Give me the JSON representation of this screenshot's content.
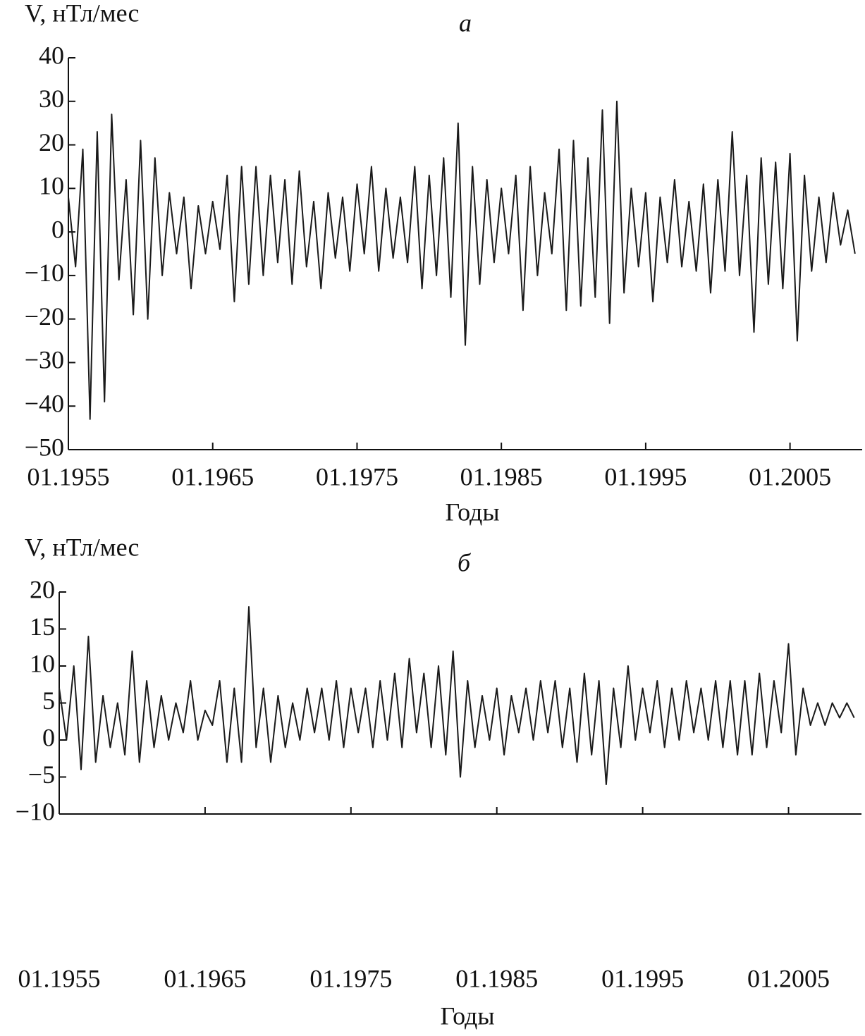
{
  "chart_data": [
    {
      "type": "line",
      "panel_label": "а",
      "ylabel": "V, нТл/мес",
      "xlabel": "Годы",
      "color": "#1a1a1a",
      "xlim": [
        "01.1955",
        "01.2010"
      ],
      "xticks": [
        "01.1955",
        "01.1965",
        "01.1975",
        "01.1985",
        "01.1995",
        "01.2005"
      ],
      "ylim": [
        -50,
        40
      ],
      "yticks": [
        {
          "value": -50,
          "label": "−50"
        },
        {
          "value": -40,
          "label": "−40"
        },
        {
          "value": -30,
          "label": "−30"
        },
        {
          "value": -20,
          "label": "−20"
        },
        {
          "value": -10,
          "label": "−10"
        },
        0,
        10,
        20,
        30,
        40
      ],
      "series": [
        {
          "name": "V",
          "color": "#1a1a1a",
          "x": [
            "01.1955",
            "07.1955",
            "01.1956",
            "07.1956",
            "01.1957",
            "07.1957",
            "01.1958",
            "07.1958",
            "01.1959",
            "07.1959",
            "01.1960",
            "07.1960",
            "01.1961",
            "07.1961",
            "01.1962",
            "07.1962",
            "01.1963",
            "07.1963",
            "01.1964",
            "07.1964",
            "01.1965",
            "07.1965",
            "01.1966",
            "07.1966",
            "01.1967",
            "07.1967",
            "01.1968",
            "07.1968",
            "01.1969",
            "07.1969",
            "01.1970",
            "07.1970",
            "01.1971",
            "07.1971",
            "01.1972",
            "07.1972",
            "01.1973",
            "07.1973",
            "01.1974",
            "07.1974",
            "01.1975",
            "07.1975",
            "01.1976",
            "07.1976",
            "01.1977",
            "07.1977",
            "01.1978",
            "07.1978",
            "01.1979",
            "07.1979",
            "01.1980",
            "07.1980",
            "01.1981",
            "07.1981",
            "01.1982",
            "07.1982",
            "01.1983",
            "07.1983",
            "01.1984",
            "07.1984",
            "01.1985",
            "07.1985",
            "01.1986",
            "07.1986",
            "01.1987",
            "07.1987",
            "01.1988",
            "07.1988",
            "01.1989",
            "07.1989",
            "01.1990",
            "07.1990",
            "01.1991",
            "07.1991",
            "01.1992",
            "07.1992",
            "01.1993",
            "07.1993",
            "01.1994",
            "07.1994",
            "01.1995",
            "07.1995",
            "01.1996",
            "07.1996",
            "01.1997",
            "07.1997",
            "01.1998",
            "07.1998",
            "01.1999",
            "07.1999",
            "01.2000",
            "07.2000",
            "01.2001",
            "07.2001",
            "01.2002",
            "07.2002",
            "01.2003",
            "07.2003",
            "01.2004",
            "07.2004",
            "01.2005",
            "07.2005",
            "01.2006",
            "07.2006",
            "01.2007",
            "07.2007",
            "01.2008",
            "07.2008",
            "01.2009",
            "07.2009"
          ],
          "values": [
            8,
            -8,
            19,
            -43,
            23,
            -39,
            27,
            -11,
            12,
            -19,
            21,
            -20,
            17,
            -10,
            9,
            -5,
            8,
            -13,
            6,
            -5,
            7,
            -4,
            13,
            -16,
            15,
            -12,
            15,
            -10,
            13,
            -7,
            12,
            -12,
            14,
            -8,
            7,
            -13,
            9,
            -6,
            8,
            -9,
            11,
            -5,
            15,
            -9,
            10,
            -6,
            8,
            -7,
            15,
            -13,
            13,
            -10,
            17,
            -15,
            25,
            -26,
            15,
            -12,
            12,
            -7,
            10,
            -5,
            13,
            -18,
            15,
            -10,
            9,
            -5,
            19,
            -18,
            21,
            -17,
            17,
            -15,
            28,
            -21,
            30,
            -14,
            10,
            -8,
            9,
            -16,
            8,
            -7,
            12,
            -8,
            7,
            -9,
            11,
            -14,
            12,
            -9,
            23,
            -10,
            13,
            -23,
            17,
            -12,
            16,
            -13,
            18,
            -25,
            13,
            -9,
            8,
            -7,
            9,
            -3,
            5,
            -5
          ]
        }
      ]
    },
    {
      "type": "line",
      "panel_label": "б",
      "ylabel": "V, нТл/мес",
      "xlabel": "Годы",
      "color": "#1a1a1a",
      "xlim": [
        "01.1955",
        "01.2010"
      ],
      "xticks": [
        "01.1955",
        "01.1965",
        "01.1975",
        "01.1985",
        "01.1995",
        "01.2005"
      ],
      "ylim": [
        -10,
        20
      ],
      "yticks": [
        {
          "value": -10,
          "label": "−10"
        },
        {
          "value": -5,
          "label": "−5"
        },
        0,
        5,
        10,
        15,
        20
      ],
      "series": [
        {
          "name": "V",
          "color": "#1a1a1a",
          "x": [
            "01.1955",
            "07.1955",
            "01.1956",
            "07.1956",
            "01.1957",
            "07.1957",
            "01.1958",
            "07.1958",
            "01.1959",
            "07.1959",
            "01.1960",
            "07.1960",
            "01.1961",
            "07.1961",
            "01.1962",
            "07.1962",
            "01.1963",
            "07.1963",
            "01.1964",
            "07.1964",
            "01.1965",
            "07.1965",
            "01.1966",
            "07.1966",
            "01.1967",
            "07.1967",
            "01.1968",
            "07.1968",
            "01.1969",
            "07.1969",
            "01.1970",
            "07.1970",
            "01.1971",
            "07.1971",
            "01.1972",
            "07.1972",
            "01.1973",
            "07.1973",
            "01.1974",
            "07.1974",
            "01.1975",
            "07.1975",
            "01.1976",
            "07.1976",
            "01.1977",
            "07.1977",
            "01.1978",
            "07.1978",
            "01.1979",
            "07.1979",
            "01.1980",
            "07.1980",
            "01.1981",
            "07.1981",
            "01.1982",
            "07.1982",
            "01.1983",
            "07.1983",
            "01.1984",
            "07.1984",
            "01.1985",
            "07.1985",
            "01.1986",
            "07.1986",
            "01.1987",
            "07.1987",
            "01.1988",
            "07.1988",
            "01.1989",
            "07.1989",
            "01.1990",
            "07.1990",
            "01.1991",
            "07.1991",
            "01.1992",
            "07.1992",
            "01.1993",
            "07.1993",
            "01.1994",
            "07.1994",
            "01.1995",
            "07.1995",
            "01.1996",
            "07.1996",
            "01.1997",
            "07.1997",
            "01.1998",
            "07.1998",
            "01.1999",
            "07.1999",
            "01.2000",
            "07.2000",
            "01.2001",
            "07.2001",
            "01.2002",
            "07.2002",
            "01.2003",
            "07.2003",
            "01.2004",
            "07.2004",
            "01.2005",
            "07.2005",
            "01.2006",
            "07.2006",
            "01.2007",
            "07.2007",
            "01.2008",
            "07.2008",
            "01.2009",
            "07.2009"
          ],
          "values": [
            7,
            0,
            10,
            -4,
            14,
            -3,
            6,
            -1,
            5,
            -2,
            12,
            -3,
            8,
            -1,
            6,
            0,
            5,
            1,
            8,
            0,
            4,
            2,
            8,
            -3,
            7,
            -3,
            18,
            -1,
            7,
            -3,
            6,
            -1,
            5,
            0,
            7,
            1,
            7,
            0,
            8,
            -1,
            7,
            1,
            7,
            -1,
            8,
            0,
            9,
            -1,
            11,
            1,
            9,
            -1,
            10,
            -2,
            12,
            -5,
            8,
            -1,
            6,
            0,
            7,
            -2,
            6,
            1,
            7,
            0,
            8,
            1,
            8,
            -1,
            7,
            -3,
            9,
            -2,
            8,
            -6,
            7,
            -1,
            10,
            0,
            7,
            1,
            8,
            -1,
            7,
            0,
            8,
            1,
            7,
            0,
            8,
            -1,
            8,
            -2,
            8,
            -2,
            9,
            -1,
            8,
            1,
            13,
            -2,
            7,
            2,
            5,
            2,
            5,
            3,
            5,
            3
          ]
        }
      ]
    }
  ]
}
